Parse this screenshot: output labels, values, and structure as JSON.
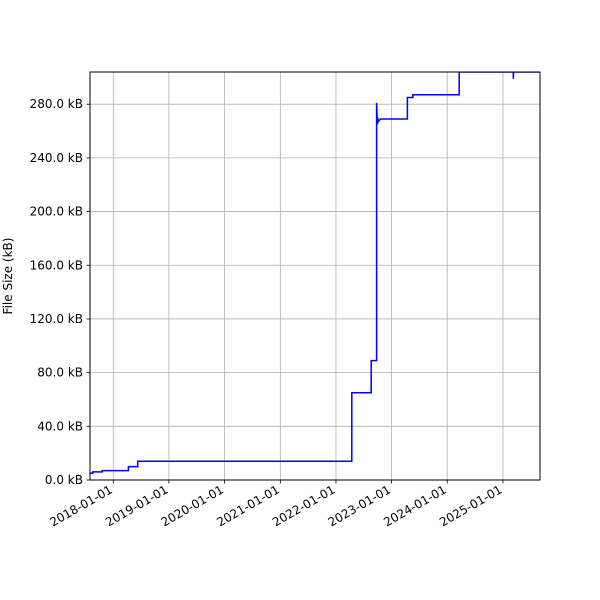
{
  "chart_data": {
    "type": "line",
    "title": "",
    "xlabel": "",
    "ylabel": "File Size (kB)",
    "grid": true,
    "line_color": "#0000ff",
    "x_ticks": [
      "2018-01-01",
      "2019-01-01",
      "2020-01-01",
      "2021-01-01",
      "2022-01-01",
      "2023-01-01",
      "2024-01-01",
      "2025-01-01"
    ],
    "y_ticks": [
      0,
      40,
      80,
      120,
      160,
      200,
      240,
      280
    ],
    "y_tick_labels": [
      "0.0 kB",
      "40.0 kB",
      "80.0 kB",
      "120.0 kB",
      "160.0 kB",
      "200.0 kB",
      "240.0 kB",
      "280.0 kB"
    ],
    "xlim": [
      "2017-08-01",
      "2025-09-01"
    ],
    "ylim": [
      0,
      304
    ],
    "series": [
      {
        "x": [
          "2017-08-01",
          "2017-08-20",
          "2017-08-20",
          "2017-10-20",
          "2017-10-20",
          "2018-04-10",
          "2018-04-10",
          "2018-06-10",
          "2018-06-10",
          "2022-04-15",
          "2022-04-15",
          "2022-08-10",
          "2022-08-10",
          "2022-08-20",
          "2022-08-20",
          "2022-09-25",
          "2022-09-25",
          "2022-09-28",
          "2022-09-30",
          "2022-10-02",
          "2022-10-05",
          "2022-10-20",
          "2022-10-20",
          "2023-04-15",
          "2023-04-15",
          "2023-05-20",
          "2023-05-20",
          "2024-03-20",
          "2024-03-20",
          "2024-04-20",
          "2025-03-10",
          "2025-03-10",
          "2025-03-12",
          "2025-03-20",
          "2025-09-01"
        ],
        "y": [
          5,
          5,
          6,
          6,
          7,
          7,
          10,
          10,
          14,
          14,
          65,
          65,
          65,
          65,
          89,
          89,
          281,
          270,
          265,
          270,
          267,
          269,
          269,
          269,
          285,
          285,
          287,
          287,
          304,
          304,
          304,
          299,
          304,
          304,
          304
        ]
      }
    ]
  }
}
